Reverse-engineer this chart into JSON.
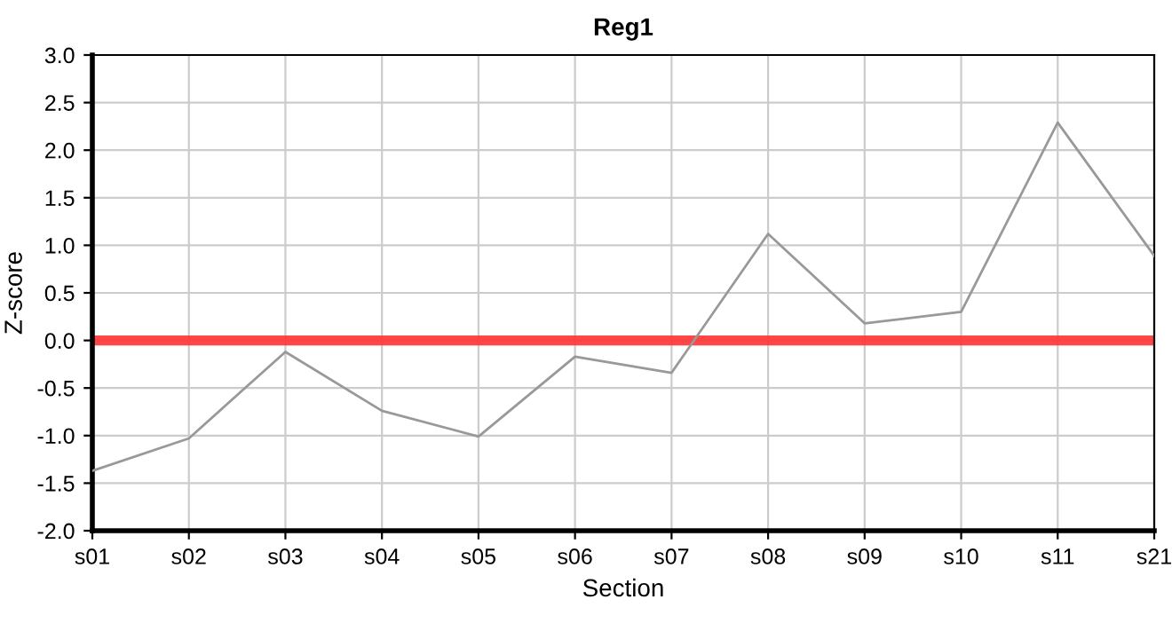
{
  "chart_data": {
    "type": "line",
    "title": "Reg1",
    "xlabel": "Section",
    "ylabel": "Z-score",
    "categories": [
      "s01",
      "s02",
      "s03",
      "s04",
      "s05",
      "s06",
      "s07",
      "s08",
      "s09",
      "s10",
      "s11",
      "s21"
    ],
    "series": [
      {
        "color": "#999999",
        "values": [
          -1.37,
          -1.03,
          -0.12,
          -0.74,
          -1.01,
          -0.17,
          -0.34,
          1.12,
          0.18,
          0.3,
          2.29,
          0.89
        ]
      }
    ],
    "ylim": [
      -2,
      3
    ],
    "yticks": [
      {
        "value": -2,
        "label": "-2.0"
      },
      {
        "value": -1.5,
        "label": "-1.5"
      },
      {
        "value": -1,
        "label": "-1.0"
      },
      {
        "value": -0.5,
        "label": "-0.5"
      },
      {
        "value": 0,
        "label": "0.0"
      },
      {
        "value": 0.5,
        "label": "0.5"
      },
      {
        "value": 1,
        "label": "1.0"
      },
      {
        "value": 1.5,
        "label": "1.5"
      },
      {
        "value": 2,
        "label": "2.0"
      },
      {
        "value": 2.5,
        "label": "2.5"
      },
      {
        "value": 3,
        "label": "3.0"
      }
    ],
    "ref_lines": [
      {
        "axis": "y",
        "value": 0,
        "color": "#ff3333"
      }
    ],
    "grid": true,
    "legend": false,
    "marker": "none",
    "line_style": "solid"
  }
}
